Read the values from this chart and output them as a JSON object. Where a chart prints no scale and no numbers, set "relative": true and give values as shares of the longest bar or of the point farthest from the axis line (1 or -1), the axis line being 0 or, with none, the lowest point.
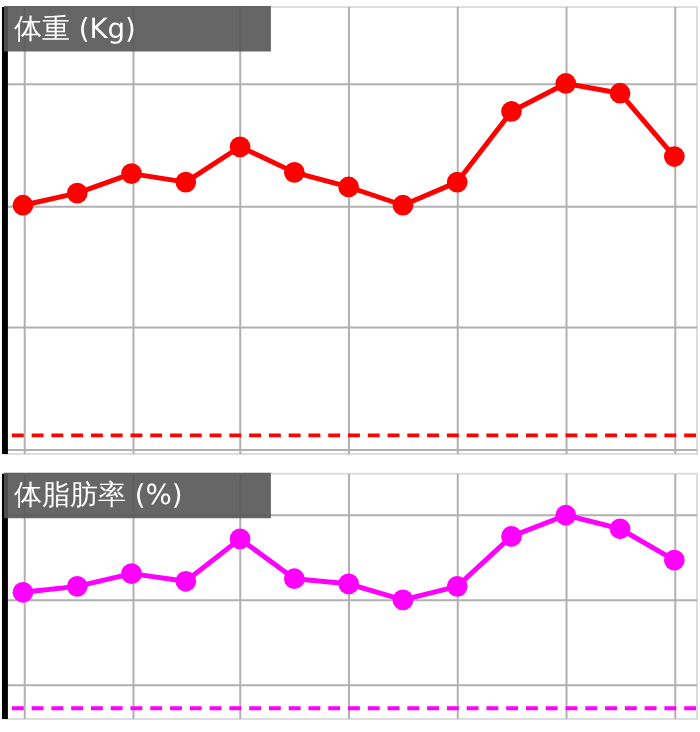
{
  "chart_data": [
    {
      "type": "line",
      "title": "体重 (Kg)",
      "relative": true,
      "categories": [
        null,
        null,
        null,
        null,
        null,
        null,
        null,
        null,
        null,
        null,
        null,
        null,
        null
      ],
      "marker": "circle",
      "line_style": "solid",
      "grid": true,
      "tick_labels": false,
      "series": [
        {
          "color": "#ff0000",
          "values": [
            0,
            0.1,
            0.26,
            0.19,
            0.48,
            0.27,
            0.15,
            0,
            0.19,
            0.77,
            1,
            0.92,
            0.4
          ]
        }
      ],
      "ref_lines": [
        {
          "axis": "y",
          "value": -1.89,
          "color": "#ff0000",
          "line_style": "dashed"
        }
      ]
    },
    {
      "type": "line",
      "title": "体脂肪率 (%)",
      "relative": true,
      "categories": [
        null,
        null,
        null,
        null,
        null,
        null,
        null,
        null,
        null,
        null,
        null,
        null,
        null
      ],
      "marker": "circle",
      "line_style": "solid",
      "grid": true,
      "tick_labels": false,
      "series": [
        {
          "color": "#ff00ff",
          "values": [
            0.09,
            0.16,
            0.31,
            0.22,
            0.72,
            0.25,
            0.19,
            0,
            0.16,
            0.75,
            1,
            0.84,
            0.47
          ]
        }
      ],
      "ref_lines": [
        {
          "axis": "y",
          "value": -1.28,
          "color": "#ff00ff",
          "line_style": "dashed"
        }
      ]
    }
  ]
}
